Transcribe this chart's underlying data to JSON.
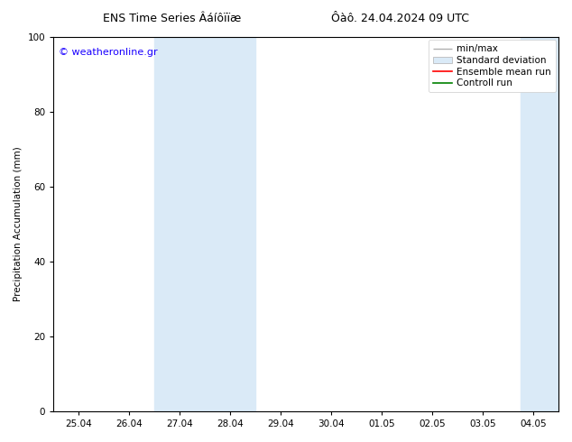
{
  "title_left": "ENS Time Series Âáíôïïæ",
  "title_right": "Ôàô. 24.04.2024 09 UTC",
  "ylabel": "Precipitation Accumulation (mm)",
  "ylim": [
    0,
    100
  ],
  "yticks": [
    0,
    20,
    40,
    60,
    80,
    100
  ],
  "x_tick_labels": [
    "25.04",
    "26.04",
    "27.04",
    "28.04",
    "29.04",
    "30.04",
    "01.05",
    "02.05",
    "03.05",
    "04.05"
  ],
  "x_tick_positions": [
    0,
    1,
    2,
    3,
    4,
    5,
    6,
    7,
    8,
    9
  ],
  "xlim": [
    -0.5,
    9.5
  ],
  "shaded_bands": [
    {
      "x_start": 1.5,
      "x_end": 3.5,
      "color": "#daeaf7"
    },
    {
      "x_start": 8.75,
      "x_end": 9.5,
      "color": "#daeaf7"
    }
  ],
  "minmax_band_color": "#b0b0b0",
  "std_band_color": "#daeaf7",
  "ensemble_mean_color": "#ff0000",
  "control_run_color": "#008000",
  "watermark_text": "© weatheronline.gr",
  "watermark_color": "#1a00ff",
  "legend_labels": [
    "min/max",
    "Standard deviation",
    "Ensemble mean run",
    "Controll run"
  ],
  "legend_colors": [
    "#b0b0b0",
    "#daeaf7",
    "#ff0000",
    "#008000"
  ],
  "bg_color": "#ffffff",
  "plot_bg_color": "#ffffff",
  "font_size": 7.5,
  "title_font_size": 9,
  "watermark_font_size": 8
}
